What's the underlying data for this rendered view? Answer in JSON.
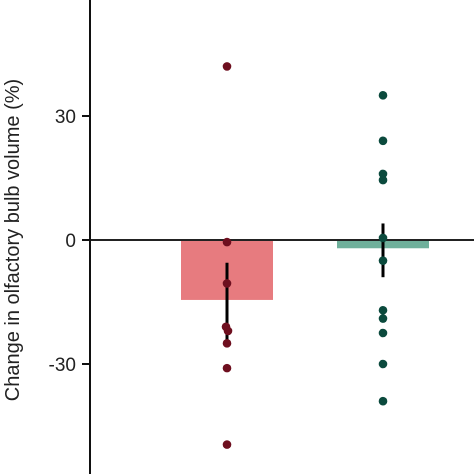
{
  "chart_data": {
    "type": "bar",
    "ylabel": "Change in olfactory bulb volume (%)",
    "yticks": [
      30,
      0,
      -30
    ],
    "yticklabels": [
      "30",
      "0",
      "-30"
    ],
    "ylim": [
      -56,
      57
    ],
    "groups": [
      {
        "mean": -14.5,
        "error_low": -24.5,
        "error_high": -5.5,
        "bar_color": "#e77b7f",
        "point_color": "#6e0f1f",
        "points": [
          42,
          -0.5,
          -10.5,
          -21,
          -22,
          -25,
          -31,
          -49.5
        ]
      },
      {
        "mean": -2,
        "error_low": -9,
        "error_high": 4,
        "bar_color": "#6fb09b",
        "point_color": "#0b4a3d",
        "points": [
          35,
          24,
          16,
          14.5,
          0.5,
          -5,
          -17,
          -19,
          -22.5,
          -30,
          -39
        ]
      }
    ],
    "colors": {
      "axis": "#111111",
      "zero_line": "#222222",
      "error_bar": "#000000"
    }
  }
}
